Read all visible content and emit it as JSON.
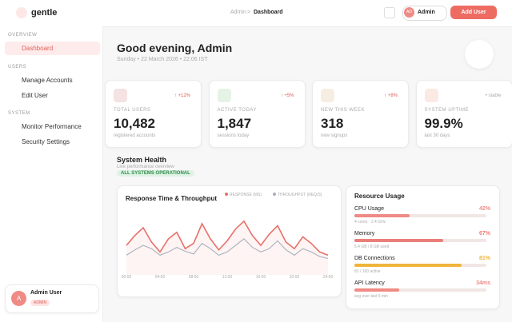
{
  "brand": "gentle",
  "sidebar": {
    "sections": [
      {
        "title": "OVERVIEW",
        "items": [
          "Dashboard"
        ]
      },
      {
        "title": "USERS",
        "items": [
          "Manage Accounts",
          "Edit User"
        ]
      },
      {
        "title": "SYSTEM",
        "items": [
          "Monitor Performance",
          "Security Settings"
        ]
      }
    ],
    "user": {
      "initial": "A",
      "name": "Admin User",
      "role": "ADMIN"
    }
  },
  "topbar": {
    "breadcrumb": [
      "Admin",
      ">",
      "Dashboard"
    ],
    "avatar": "AD",
    "user": "Admin",
    "button": "Add User"
  },
  "header": {
    "greeting": "Good evening, Admin",
    "date": "Sunday • 22 March 2026 • 22:06 IST"
  },
  "stats": [
    {
      "label": "TOTAL USERS",
      "value": "10,482",
      "note": "registered accounts",
      "change": "↑ +12%",
      "color": "#f4e3e2"
    },
    {
      "label": "ACTIVE TODAY",
      "value": "1,847",
      "note": "sessions today",
      "change": "↑ +5%",
      "color": "#e5f3e6"
    },
    {
      "label": "NEW THIS WEEK",
      "value": "318",
      "note": "new signups",
      "change": "↑ +8%",
      "color": "#f7eee3"
    },
    {
      "label": "SYSTEM UPTIME",
      "value": "99.9%",
      "note": "last 30 days",
      "change": "• stable",
      "color": "#fbe9e4"
    }
  ],
  "health": {
    "title": "System Health",
    "subtitle": "Live performance overview",
    "status": "ALL SYSTEMS OPERATIONAL"
  },
  "chart": {
    "type": "line",
    "title": "Response Time & Throughput",
    "x": [
      0,
      1,
      2,
      3,
      4,
      5,
      6,
      7,
      8,
      9,
      10,
      11,
      12,
      13,
      14,
      15,
      16,
      17,
      18,
      19,
      20,
      21,
      22,
      23,
      24
    ],
    "xlim": [
      0,
      24
    ],
    "xticks": [
      {
        "value": 0,
        "label": "00:00"
      },
      {
        "value": 4,
        "label": "04:00"
      },
      {
        "value": 8,
        "label": "08:00"
      },
      {
        "value": 12,
        "label": "12:00"
      },
      {
        "value": 16,
        "label": "16:00"
      },
      {
        "value": 20,
        "label": "20:00"
      },
      {
        "value": 24,
        "label": "24:00"
      }
    ],
    "ylim": [
      0,
      100
    ],
    "series": [
      {
        "name": "RESPONSE (MS)",
        "color": "#e8706a",
        "values": [
          45,
          60,
          72,
          50,
          35,
          55,
          65,
          40,
          48,
          78,
          55,
          38,
          52,
          70,
          82,
          60,
          45,
          62,
          75,
          50,
          40,
          58,
          48,
          35,
          30
        ]
      },
      {
        "name": "THROUGHPUT (REQ/S)",
        "color": "#a9b0bd",
        "values": [
          30,
          38,
          45,
          40,
          30,
          35,
          42,
          36,
          32,
          48,
          40,
          30,
          35,
          45,
          55,
          42,
          35,
          40,
          52,
          38,
          30,
          40,
          35,
          28,
          25
        ]
      }
    ]
  },
  "resources": {
    "title": "Resource Usage",
    "items": [
      {
        "label": "CPU Usage",
        "value": 42,
        "value_label": "42%",
        "detail": "4 cores · 2.4 GHz",
        "color": "#ef8a84"
      },
      {
        "label": "Memory",
        "value": 67,
        "value_label": "67%",
        "detail": "5.4 GB / 8 GB used",
        "color": "#ea7f7a"
      },
      {
        "label": "DB Connections",
        "value": 81,
        "value_label": "81%",
        "detail": "81 / 100 active",
        "color": "#f0b43c"
      },
      {
        "label": "API Latency",
        "value": 34,
        "value_label": "34ms",
        "detail": "avg over last 5 min",
        "color": "#ef8a84"
      }
    ]
  }
}
